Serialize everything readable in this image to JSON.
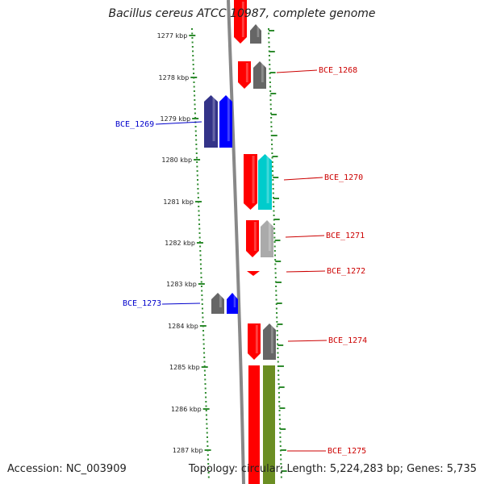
{
  "title": "Bacillus cereus ATCC 10987, complete genome",
  "footer": {
    "accession": "Accession: NC_003909",
    "topology": "Topology: circular; Length: 5,224,283 bp; Genes: 5,735"
  },
  "ticks": [
    "1277 kbp",
    "1278 kbp",
    "1279 kbp",
    "1280 kbp",
    "1281 kbp",
    "1282 kbp",
    "1283 kbp",
    "1284 kbp",
    "1285 kbp",
    "1286 kbp",
    "1287 kbp"
  ],
  "colors": {
    "forward_label": "#cc0000",
    "reverse_label": "#0000cc",
    "red": "#ff0000",
    "blue": "#0000ff",
    "navy": "#333388",
    "gray": "#666666",
    "cyan": "#00cccc",
    "lightgray": "#aaaaaa",
    "olive": "#6b8e23",
    "tick": "#2e8b2e",
    "backbone": "#888888"
  },
  "gene_labels": [
    {
      "name": "BCE_1268",
      "strand": "forward"
    },
    {
      "name": "BCE_1269",
      "strand": "reverse"
    },
    {
      "name": "BCE_1270",
      "strand": "forward"
    },
    {
      "name": "BCE_1271",
      "strand": "forward"
    },
    {
      "name": "BCE_1272",
      "strand": "forward"
    },
    {
      "name": "BCE_1273",
      "strand": "reverse"
    },
    {
      "name": "BCE_1274",
      "strand": "forward"
    },
    {
      "name": "BCE_1275",
      "strand": "forward"
    }
  ]
}
